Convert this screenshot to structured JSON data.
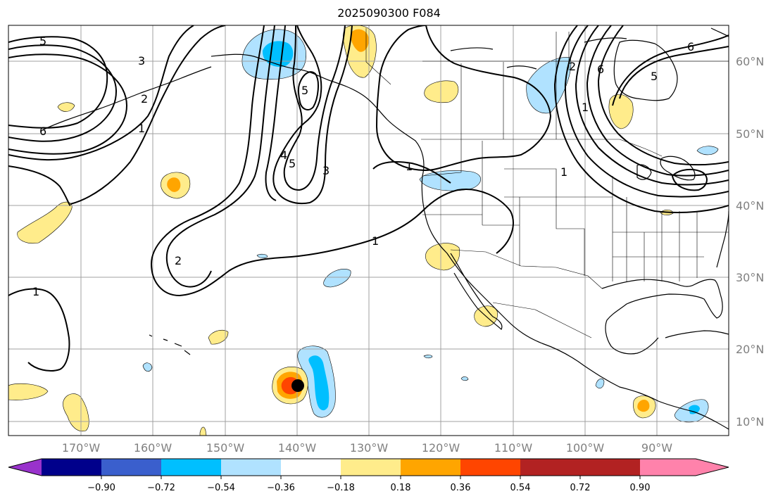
{
  "title": "2025090300 F084",
  "map": {
    "latitude_labels": [
      "60°N",
      "50°N",
      "40°N",
      "30°N",
      "20°N",
      "10°N"
    ],
    "longitude_labels": [
      "170°W",
      "160°W",
      "150°W",
      "140°W",
      "130°W",
      "120°W",
      "110°W",
      "100°W",
      "90°W"
    ],
    "contour_labels": [
      "5",
      "3",
      "2",
      "1",
      "6",
      "5",
      "4",
      "5",
      "3",
      "1",
      "1",
      "2",
      "1",
      "1",
      "2",
      "6",
      "5",
      "6",
      "1"
    ],
    "storm_marker": "hurricane-position-dot"
  },
  "colorbar": {
    "tick_labels": [
      "−0.90",
      "−0.72",
      "−0.54",
      "−0.36",
      "−0.18",
      "0.18",
      "0.36",
      "0.54",
      "0.72",
      "0.90"
    ],
    "colors": [
      "#9932cc",
      "#00008b",
      "#3a5fcd",
      "#00bfff",
      "#b0e2ff",
      "#ffffff",
      "#ffec8b",
      "#ffa500",
      "#ff4500",
      "#b22222",
      "#ff82ab"
    ]
  }
}
